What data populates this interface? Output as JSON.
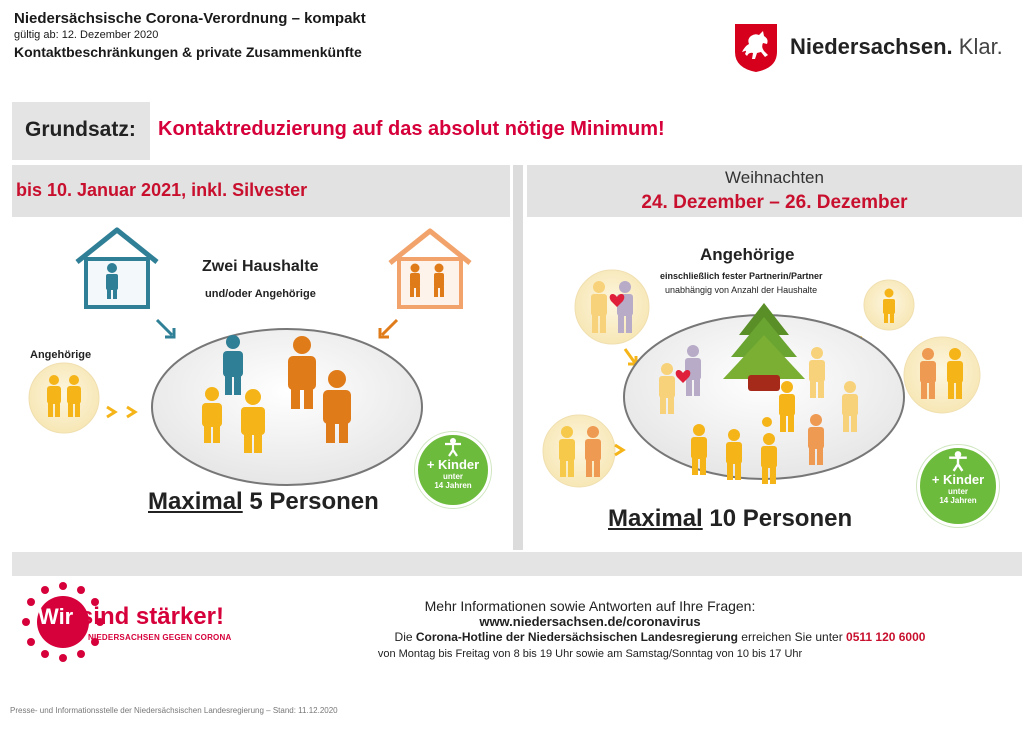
{
  "header": {
    "title": "Niedersächsische Corona-Verordnung – kompakt",
    "valid": "gültig ab: 12. Dezember 2020",
    "subtitle": "Kontaktbeschränkungen & private Zusammenkünfte",
    "logo_bold": "Niedersachsen.",
    "logo_light": "Klar."
  },
  "principle": {
    "label": "Grundsatz:",
    "text": "Kontaktreduzierung auf das absolut nötige Minimum!"
  },
  "left": {
    "heading": "bis 10. Januar 2021, inkl. Silvester",
    "households": "Zwei Haushalte",
    "households_sub": "und/oder Angehörige",
    "relatives": "Angehörige",
    "max_word": "Maximal",
    "max_rest": " 5 Personen",
    "kids_main": "+ Kinder",
    "kids_sub1": "unter",
    "kids_sub2": "14 Jahren"
  },
  "right": {
    "heading_small": "Weihnachten",
    "heading_big": "24. Dezember – 26. Dezember",
    "relatives": "Angehörige",
    "relatives_sub1": "einschließlich fester Partnerin/Partner",
    "relatives_sub2": "unabhängig von Anzahl der Haushalte",
    "max_word": "Maximal",
    "max_rest": " 10 Personen",
    "kids_main": "+ Kinder",
    "kids_sub1": "unter",
    "kids_sub2": "14 Jahren"
  },
  "footer": {
    "campaign_main": "sind stärker!",
    "campaign_prefix": "Wir",
    "campaign_sub": "NIEDERSACHSEN GEGEN CORONA",
    "info_intro": "Mehr Informationen sowie Antworten auf Ihre Fragen:",
    "url": "www.niedersachsen.de/coronavirus",
    "hotline_pre": "Die ",
    "hotline_bold": "Corona-Hotline der Niedersächsischen Landesregierung",
    "hotline_mid": " erreichen Sie unter ",
    "hotline_number": "0511 120 6000",
    "hours": "von Montag bis Freitag von 8 bis 19 Uhr sowie am Samstag/Sonntag von 10 bis 17 Uhr",
    "credit": "Presse- und Informationsstelle der Niedersächsischen Landesregierung – Stand: 11.12.2020"
  },
  "colors": {
    "red": "#c8102e",
    "orange": "#e07b1a",
    "yellow": "#f5b418",
    "teal": "#2f7f96",
    "green": "#6dbb3c"
  }
}
